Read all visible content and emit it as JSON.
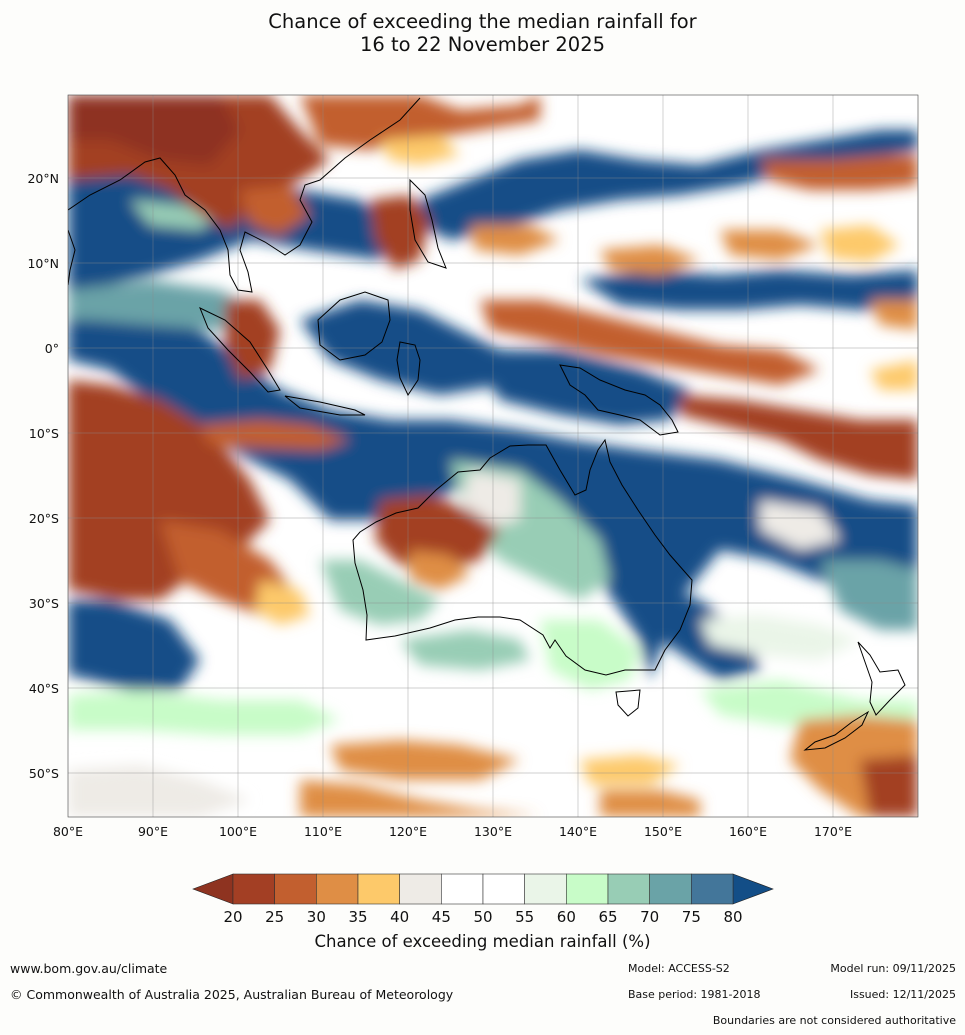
{
  "title_line1": "Chance of exceeding the median rainfall for",
  "title_line2": "16 to 22 November 2025",
  "colorbar": {
    "label": "Chance of exceeding median rainfall (%)",
    "ticks": [
      "20",
      "25",
      "30",
      "35",
      "40",
      "45",
      "50",
      "55",
      "60",
      "65",
      "70",
      "75",
      "80"
    ],
    "colors": [
      "#a33f24",
      "#c25f2f",
      "#df8e45",
      "#fdc96a",
      "#eeebe6",
      "#ffffff",
      "#ffffff",
      "#eaf5e8",
      "#c8fcc8",
      "#98cdb5",
      "#6aa3a7",
      "#43769a"
    ],
    "under_color": "#8e3320",
    "over_color": "#134e87"
  },
  "map": {
    "lon_labels": [
      "80°E",
      "90°E",
      "100°E",
      "110°E",
      "120°E",
      "130°E",
      "140°E",
      "150°E",
      "160°E",
      "170°E"
    ],
    "lat_labels": [
      "20°N",
      "10°N",
      "0°",
      "10°S",
      "20°S",
      "30°S",
      "40°S",
      "50°S"
    ],
    "lon_range": [
      80,
      180
    ],
    "lat_range": [
      -55,
      30
    ],
    "gridlines": true
  },
  "footer": {
    "website": "www.bom.gov.au/climate",
    "copyright": "© Commonwealth of Australia 2025, Australian Bureau of Meteorology",
    "model": "Model: ACCESS-S2",
    "base_period": "Base period: 1981-2018",
    "model_run": "Model run: 09/11/2025",
    "issued": "Issued: 12/11/2025",
    "boundaries_note": "Boundaries are not considered authoritative"
  }
}
